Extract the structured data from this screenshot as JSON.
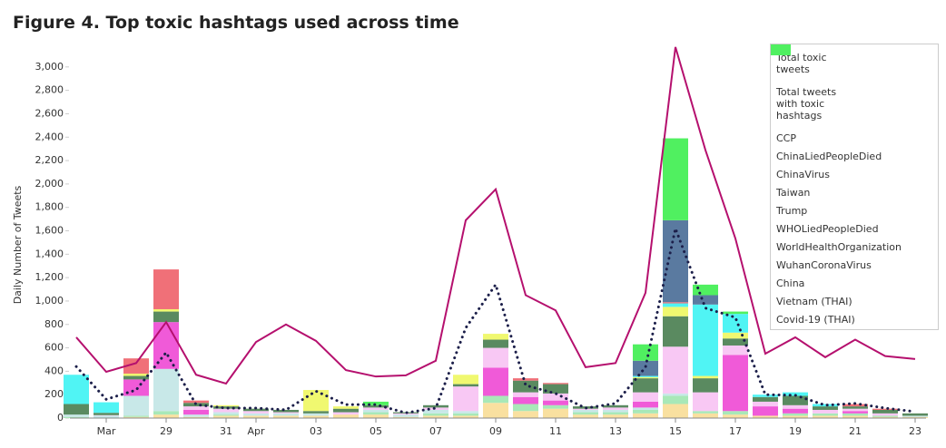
{
  "chart_data": {
    "type": "bar",
    "stacked": true,
    "title": "Figure 4. Top toxic hashtags used across time",
    "y_label": "Daily Number of Tweets",
    "categories": [
      null,
      "Mar",
      null,
      "29",
      null,
      "31",
      "Apr",
      null,
      "03",
      null,
      "05",
      null,
      "07",
      null,
      "09",
      null,
      "11",
      null,
      "13",
      null,
      "15",
      null,
      "17",
      null,
      "19",
      null,
      "21",
      null,
      "23"
    ],
    "ylim": [
      0,
      3200
    ],
    "yticks": [
      0,
      200,
      400,
      600,
      800,
      {
        "value": 1000,
        "label": "1,000"
      },
      {
        "value": 1200,
        "label": "1,200"
      },
      {
        "value": 1400,
        "label": "1,400"
      },
      {
        "value": 1600,
        "label": "1,600"
      },
      {
        "value": 1800,
        "label": "1,800"
      },
      {
        "value": 2000,
        "label": "2,000"
      },
      {
        "value": 2200,
        "label": "2,200"
      },
      {
        "value": 2400,
        "label": "2,400"
      },
      {
        "value": 2600,
        "label": "2,600"
      },
      {
        "value": 2800,
        "label": "2,800"
      },
      {
        "value": 3000,
        "label": "3,000"
      }
    ],
    "grid": false,
    "legend": "right",
    "series": [
      {
        "name": "Total toxic tweets",
        "type": "line",
        "style": "solid",
        "color": "#b5106e",
        "values": [
          690,
          395,
          470,
          820,
          370,
          295,
          650,
          800,
          660,
          410,
          355,
          365,
          490,
          1690,
          1955,
          1050,
          920,
          435,
          470,
          1070,
          3170,
          2290,
          1535,
          550,
          690,
          520,
          670,
          530,
          505
        ]
      },
      {
        "name": "Total tweets with toxic hashtags",
        "type": "line",
        "style": "dotted",
        "color": "#1c1f4a",
        "values": [
          440,
          160,
          240,
          560,
          115,
          85,
          85,
          70,
          230,
          115,
          115,
          45,
          85,
          770,
          1140,
          280,
          210,
          85,
          125,
          435,
          1620,
          940,
          860,
          200,
          195,
          110,
          125,
          85,
          55
        ]
      },
      {
        "name": "CCP",
        "type": "bar",
        "color": "#f9e0a0",
        "values": [
          0,
          0,
          10,
          30,
          10,
          20,
          20,
          20,
          20,
          30,
          30,
          10,
          20,
          20,
          130,
          60,
          80,
          30,
          30,
          40,
          120,
          40,
          30,
          20,
          20,
          20,
          20,
          10,
          10
        ]
      },
      {
        "name": "ChinaLiedPeopleDied",
        "type": "bar",
        "color": "#a8e8b8",
        "values": [
          10,
          0,
          10,
          30,
          0,
          10,
          0,
          0,
          0,
          0,
          20,
          0,
          20,
          20,
          60,
          60,
          30,
          20,
          20,
          30,
          70,
          20,
          30,
          0,
          20,
          20,
          20,
          10,
          0
        ]
      },
      {
        "name": "ChinaVirus",
        "type": "bar",
        "color": "#c8e8e8",
        "values": [
          20,
          20,
          170,
          360,
          20,
          20,
          20,
          20,
          20,
          0,
          20,
          20,
          30,
          20,
          0,
          0,
          0,
          20,
          20,
          20,
          20,
          0,
          0,
          0,
          0,
          0,
          0,
          0,
          10
        ]
      },
      {
        "name": "Taiwan",
        "type": "bar",
        "color": "#f05ad8",
        "values": [
          0,
          0,
          140,
          400,
          40,
          0,
          0,
          0,
          0,
          0,
          0,
          0,
          0,
          0,
          240,
          60,
          40,
          0,
          0,
          50,
          0,
          0,
          480,
          80,
          40,
          0,
          20,
          0,
          0
        ]
      },
      {
        "name": "Trump",
        "type": "bar",
        "color": "#f8c8f4",
        "values": [
          0,
          5,
          0,
          0,
          30,
          30,
          20,
          10,
          0,
          20,
          20,
          10,
          20,
          210,
          170,
          40,
          60,
          10,
          20,
          80,
          400,
          160,
          80,
          40,
          30,
          30,
          20,
          20,
          0
        ]
      },
      {
        "name": "WHOLiedPeopleDied",
        "type": "bar",
        "color": "#5a8a60",
        "values": [
          90,
          20,
          30,
          90,
          30,
          20,
          20,
          20,
          20,
          30,
          20,
          10,
          20,
          20,
          70,
          100,
          80,
          20,
          20,
          120,
          260,
          120,
          60,
          40,
          80,
          30,
          20,
          30,
          20
        ]
      },
      {
        "name": "WorldHealthOrganization",
        "type": "bar",
        "color": "#f0f870",
        "values": [
          0,
          0,
          20,
          20,
          0,
          10,
          0,
          0,
          180,
          20,
          0,
          0,
          0,
          80,
          50,
          0,
          0,
          0,
          0,
          10,
          80,
          20,
          50,
          0,
          0,
          0,
          0,
          0,
          0
        ]
      },
      {
        "name": "WuhanCoronaVirus",
        "type": "bar",
        "color": "#50f4f4",
        "values": [
          250,
          90,
          0,
          0,
          0,
          0,
          0,
          0,
          0,
          0,
          0,
          0,
          0,
          0,
          0,
          0,
          0,
          0,
          0,
          10,
          30,
          610,
          160,
          20,
          30,
          20,
          0,
          0,
          0
        ]
      },
      {
        "name": "China",
        "type": "bar",
        "color": "#f07078",
        "values": [
          0,
          0,
          130,
          340,
          20,
          0,
          0,
          0,
          0,
          0,
          0,
          0,
          0,
          0,
          0,
          20,
          10,
          0,
          0,
          0,
          10,
          0,
          0,
          0,
          0,
          0,
          20,
          10,
          0
        ]
      },
      {
        "name": "Vietnam (THAI)",
        "type": "bar",
        "color": "#5a7aa0",
        "values": [
          0,
          0,
          0,
          0,
          0,
          0,
          0,
          0,
          0,
          0,
          0,
          0,
          0,
          0,
          0,
          0,
          0,
          0,
          0,
          130,
          700,
          80,
          0,
          0,
          0,
          0,
          0,
          0,
          0
        ]
      },
      {
        "name": "Covid-19 (THAI)",
        "type": "bar",
        "color": "#50f060",
        "values": [
          0,
          0,
          0,
          0,
          0,
          0,
          0,
          0,
          0,
          0,
          30,
          0,
          0,
          0,
          0,
          0,
          0,
          0,
          0,
          140,
          700,
          90,
          20,
          0,
          0,
          0,
          0,
          0,
          0
        ]
      }
    ]
  }
}
